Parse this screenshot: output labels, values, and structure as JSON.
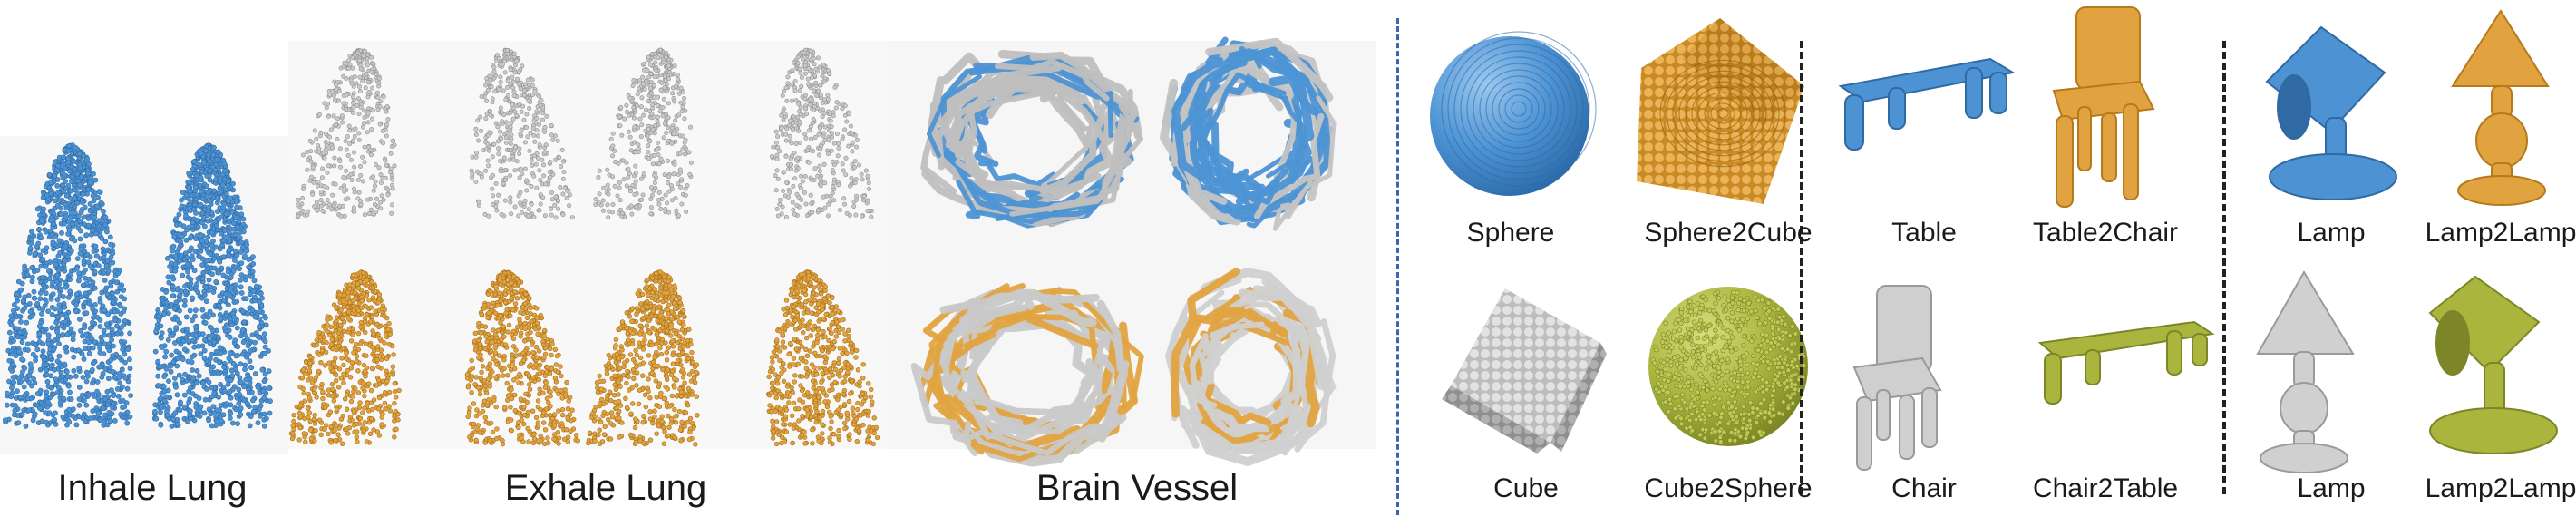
{
  "colors": {
    "blue": "#4d93d4",
    "gray": "#c9c9c9",
    "orange": "#e0a340",
    "olive": "#a9b53d",
    "separator_blue": "#3a66b0",
    "separator_black": "#222222"
  },
  "left_labels": {
    "inhale": "Inhale Lung",
    "exhale": "Exhale Lung",
    "brain": "Brain Vessel"
  },
  "top_labels": {
    "sphere": "Sphere",
    "sphere2cube": "Sphere2Cube",
    "table": "Table",
    "table2chair": "Table2Chair",
    "lamp": "Lamp",
    "lamp2lamp": "Lamp2Lamp"
  },
  "bottom_labels": {
    "cube": "Cube",
    "cube2sphere": "Cube2Sphere",
    "chair": "Chair",
    "chair2table": "Chair2Table",
    "lamp": "Lamp",
    "lamp2lamp": "Lamp2Lamp"
  }
}
